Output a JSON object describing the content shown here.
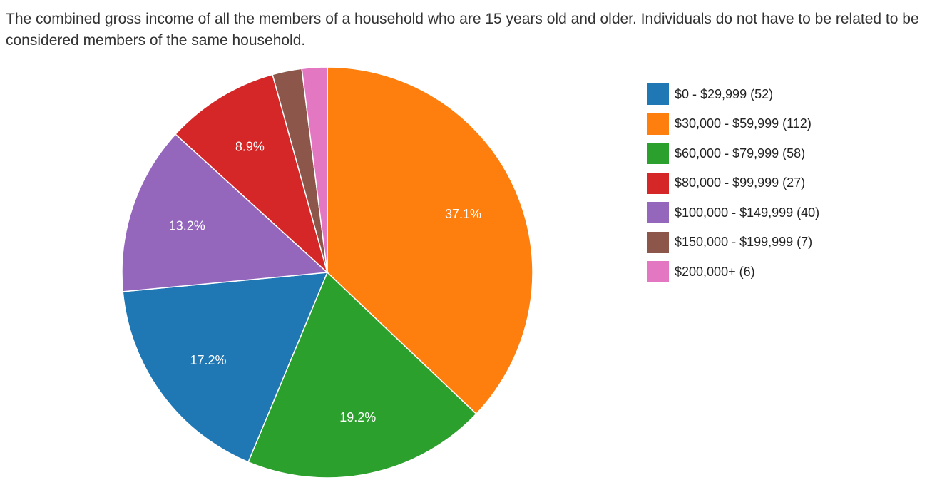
{
  "question": {
    "text": "The combined gross income of all the members of a household who are 15 years old and older. Individuals do not have to be related to be considered members of the same household."
  },
  "chart_data": {
    "type": "pie",
    "title": "",
    "start": "top",
    "direction": "clockwise",
    "legend_position": "right",
    "slices": [
      {
        "label": "$30,000 - $59,999 (112)",
        "category": "$30,000 - $59,999",
        "count": 112,
        "percent_label": "37.1%",
        "color": "#ff7f0e"
      },
      {
        "label": "$60,000 - $79,999 (58)",
        "category": "$60,000 - $79,999",
        "count": 58,
        "percent_label": "19.2%",
        "color": "#2ca02c"
      },
      {
        "label": "$0 - $29,999 (52)",
        "category": "$0 - $29,999",
        "count": 52,
        "percent_label": "17.2%",
        "color": "#1f77b4"
      },
      {
        "label": "$100,000 - $149,999 (40)",
        "category": "$100,000 - $149,999",
        "count": 40,
        "percent_label": "13.2%",
        "color": "#9467bd"
      },
      {
        "label": "$80,000 - $99,999 (27)",
        "category": "$80,000 - $99,999",
        "count": 27,
        "percent_label": "8.9%",
        "color": "#d62728"
      },
      {
        "label": "$150,000 - $199,999 (7)",
        "category": "$150,000 - $199,999",
        "count": 7,
        "percent_label": "",
        "color": "#8c564b"
      },
      {
        "label": "$200,000+ (6)",
        "category": "$200,000+",
        "count": 6,
        "percent_label": "",
        "color": "#e377c2"
      }
    ],
    "legend": [
      {
        "label": "$0 - $29,999 (52)",
        "color": "#1f77b4"
      },
      {
        "label": "$30,000 - $59,999 (112)",
        "color": "#ff7f0e"
      },
      {
        "label": "$60,000 - $79,999 (58)",
        "color": "#2ca02c"
      },
      {
        "label": "$80,000 - $99,999 (27)",
        "color": "#d62728"
      },
      {
        "label": "$100,000 - $149,999 (40)",
        "color": "#9467bd"
      },
      {
        "label": "$150,000 - $199,999 (7)",
        "color": "#8c564b"
      },
      {
        "label": "$200,000+ (6)",
        "color": "#e377c2"
      }
    ]
  }
}
